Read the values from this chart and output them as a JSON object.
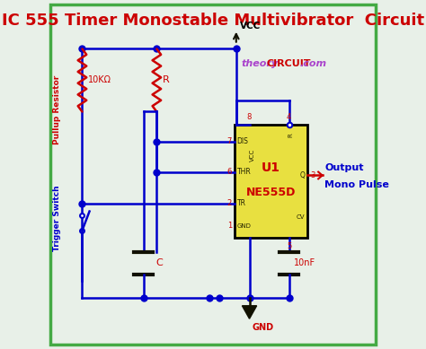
{
  "title": "IC 555 Timer Monostable Multivibrator  Circuit",
  "title_color": "#cc0000",
  "title_fontsize": 13,
  "bg_color": "#e8f0e8",
  "border_color": "#44aa44",
  "wire_blue": "#0000cc",
  "wire_red": "#cc0000",
  "wire_dark": "#111100",
  "ic_fill": "#e8e040",
  "ic_border": "#000000",
  "ic_text_color": "#cc0000",
  "theory_color": "#aa44cc",
  "circuit_color": "#cc0000",
  "dotcom_color": "#aa44cc",
  "output_color": "#0000cc",
  "label_pullup": "Pullup Resistor",
  "label_trigger": "Trigger Switch",
  "label_10k": "10KΩ",
  "label_R": "R",
  "label_C": "C",
  "label_10nF": "10nF",
  "label_VCC": "VCC",
  "label_GND": "GND",
  "label_output": "Output",
  "label_mono": "Mono Pulse"
}
